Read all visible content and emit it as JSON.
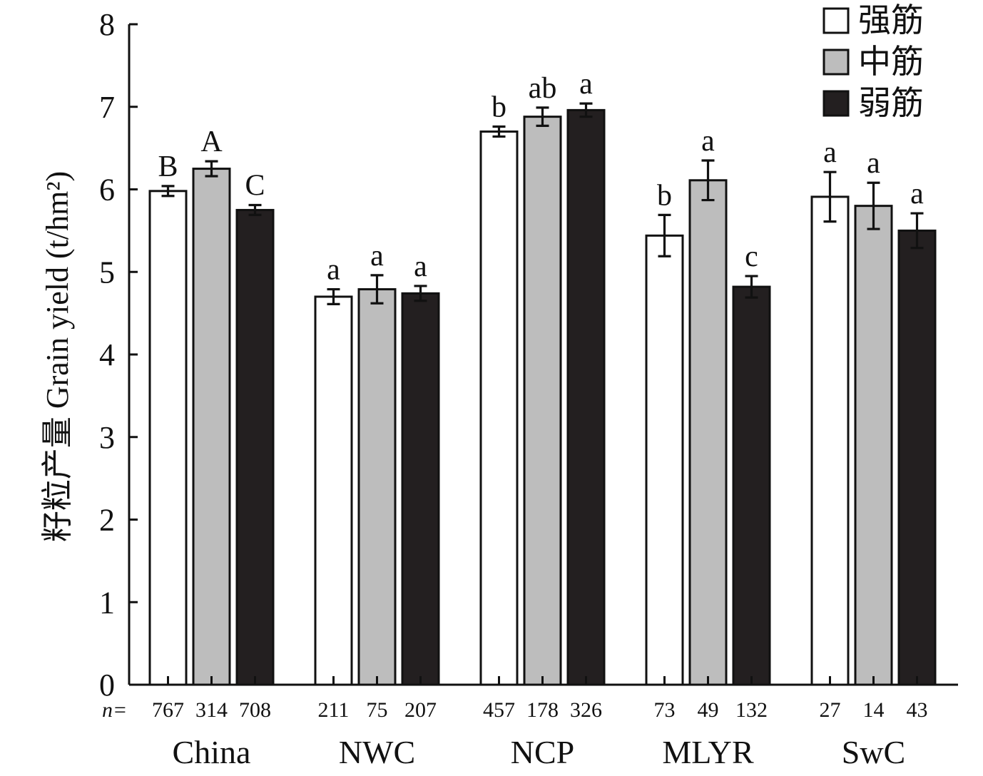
{
  "chart_data": {
    "type": "bar",
    "ylabel": "籽粒产量 Grain yield (t/hm²)",
    "ylim": [
      0,
      8
    ],
    "yticks": [
      "0",
      "1",
      "2",
      "3",
      "4",
      "5",
      "6",
      "7",
      "8"
    ],
    "categories": [
      "China",
      "NWC",
      "NCP",
      "MLYR",
      "SwC"
    ],
    "n_prefix": "n=",
    "series": [
      {
        "name": "强筋",
        "color": "#ffffff",
        "values": [
          5.98,
          4.7,
          6.7,
          5.44,
          5.91
        ],
        "errors": [
          0.06,
          0.09,
          0.06,
          0.25,
          0.3
        ],
        "letters": [
          "B",
          "a",
          "b",
          "b",
          "a"
        ],
        "n": [
          "767",
          "211",
          "457",
          "73",
          "27"
        ]
      },
      {
        "name": "中筋",
        "color": "#bdbdbd",
        "values": [
          6.25,
          4.79,
          6.88,
          6.11,
          5.8
        ],
        "errors": [
          0.09,
          0.17,
          0.11,
          0.24,
          0.28
        ],
        "letters": [
          "A",
          "a",
          "ab",
          "a",
          "a"
        ],
        "n": [
          "314",
          "75",
          "178",
          "49",
          "14"
        ]
      },
      {
        "name": "弱筋",
        "color": "#231f20",
        "values": [
          5.75,
          4.74,
          6.96,
          4.82,
          5.5
        ],
        "errors": [
          0.06,
          0.09,
          0.08,
          0.13,
          0.21
        ],
        "letters": [
          "C",
          "a",
          "a",
          "c",
          "a"
        ],
        "n": [
          "708",
          "207",
          "326",
          "132",
          "43"
        ]
      }
    ],
    "legend": "top-right",
    "grid": false
  }
}
